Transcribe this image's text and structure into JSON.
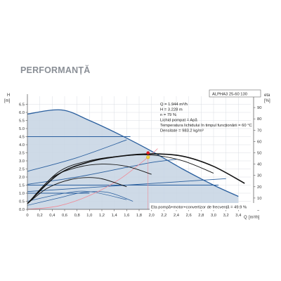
{
  "section_title": "PERFORMANȚĂ",
  "chart_data": {
    "type": "line",
    "model": "ALPHA3 25-60 130",
    "left_axis": {
      "label": "H",
      "unit": "[m]",
      "ylim": [
        0,
        7
      ],
      "ticks": [
        "0.0",
        "0.5",
        "1.0",
        "1.5",
        "2.0",
        "2.5",
        "3.0",
        "3.5",
        "4.0",
        "4.5",
        "5.0",
        "5.5",
        "6.0",
        "6.5"
      ]
    },
    "right_axis": {
      "label": "eta",
      "unit": "[%]",
      "ylim": [
        0,
        100
      ],
      "ticks": [
        "0",
        "10",
        "20",
        "30",
        "40",
        "50",
        "60",
        "70",
        "80",
        "90"
      ]
    },
    "x_axis": {
      "label": "Q",
      "unit": "[m³/h]",
      "xlim": [
        0,
        3.6
      ],
      "ticks": [
        "0",
        "0,2",
        "0,4",
        "0,6",
        "0,8",
        "1,0",
        "1,2",
        "1,4",
        "1,6",
        "1,8",
        "2,0",
        "2,2",
        "2,4",
        "2,6",
        "2,8",
        "3,0",
        "3,2",
        "3,4"
      ]
    },
    "info": {
      "q": "Q = 1.944  m³/h",
      "h": "H = 3.228  m",
      "n": "n = 79 %",
      "liquid": "Lichid pompat = Apă",
      "temperature": "Temperatura lichidului în timpul funcționării = 60  °C",
      "density": "Densitate = 983.2  kg/m³"
    },
    "eta_caption": "Eta pompă+motor+convertizor de frecvență = 49.9 %",
    "operating_point": {
      "q": 1.944,
      "h": 3.228
    },
    "eta_point": {
      "q": 1.944,
      "eta": 49.9
    },
    "max_curve": [
      [
        0,
        5.9
      ],
      [
        0.55,
        6.15
      ],
      [
        1.0,
        5.5
      ],
      [
        1.5,
        4.6
      ],
      [
        2.0,
        3.6
      ],
      [
        2.5,
        2.5
      ],
      [
        3.0,
        1.5
      ],
      [
        3.4,
        0.8
      ]
    ],
    "proportional_curves": [
      [
        [
          0,
          2.35
        ],
        [
          0.8,
          3.2
        ],
        [
          1.6,
          4.3
        ]
      ],
      [
        [
          0,
          1.55
        ],
        [
          0.8,
          2.0
        ],
        [
          1.6,
          2.6
        ],
        [
          2.0,
          2.9
        ],
        [
          2.4,
          3.1
        ]
      ],
      [
        [
          0,
          1.1
        ],
        [
          0.8,
          1.3
        ],
        [
          1.6,
          1.5
        ],
        [
          2.4,
          1.7
        ],
        [
          3.2,
          1.9
        ]
      ]
    ],
    "constant_curves": [
      [
        [
          0,
          4.5
        ],
        [
          1.66,
          4.5
        ]
      ],
      [
        [
          0,
          1.5
        ],
        [
          3.08,
          1.5
        ]
      ],
      [
        [
          0,
          1.0
        ],
        [
          1.0,
          1.0
        ]
      ]
    ],
    "low_speed_curves": [
      [
        [
          0,
          0.25
        ],
        [
          0.5,
          0.7
        ],
        [
          0.9,
          1.05
        ],
        [
          1.3,
          1.05
        ],
        [
          1.7,
          0.5
        ]
      ],
      [
        [
          0,
          0.5
        ],
        [
          0.6,
          1.0
        ],
        [
          1.0,
          1.1
        ],
        [
          1.6,
          0.6
        ]
      ]
    ],
    "system_curve": [
      [
        0,
        0
      ],
      [
        0.5,
        0.21
      ],
      [
        1.0,
        0.85
      ],
      [
        1.5,
        1.9
      ],
      [
        1.944,
        3.228
      ],
      [
        2.1,
        3.76
      ]
    ],
    "eta_curves": [
      [
        [
          0,
          5
        ],
        [
          0.5,
          31
        ],
        [
          1.0,
          42
        ],
        [
          1.5,
          47
        ],
        [
          2.0,
          49
        ],
        [
          2.5,
          47
        ],
        [
          3.0,
          38
        ],
        [
          3.5,
          23
        ]
      ],
      [
        [
          0,
          5
        ],
        [
          0.5,
          33
        ],
        [
          1.0,
          43
        ],
        [
          1.5,
          47
        ],
        [
          2.0,
          48
        ],
        [
          2.5,
          43
        ],
        [
          3.0,
          32
        ]
      ],
      [
        [
          0,
          5
        ],
        [
          0.4,
          28
        ],
        [
          0.8,
          37
        ],
        [
          1.2,
          40
        ],
        [
          1.6,
          38
        ],
        [
          2.0,
          31
        ]
      ],
      [
        [
          0,
          5
        ],
        [
          0.3,
          18
        ],
        [
          0.6,
          25
        ],
        [
          0.9,
          28
        ],
        [
          1.2,
          27
        ],
        [
          1.6,
          20
        ]
      ]
    ],
    "colors": {
      "region_fill": "#c5d4e3",
      "blue_curve": "#2a5f9e",
      "eta_curve": "#111111",
      "system_curve": "#f08a96",
      "operating_point": "#f2d23a",
      "eta_point": "#e11b22",
      "grid": "#d2d6dc"
    }
  }
}
